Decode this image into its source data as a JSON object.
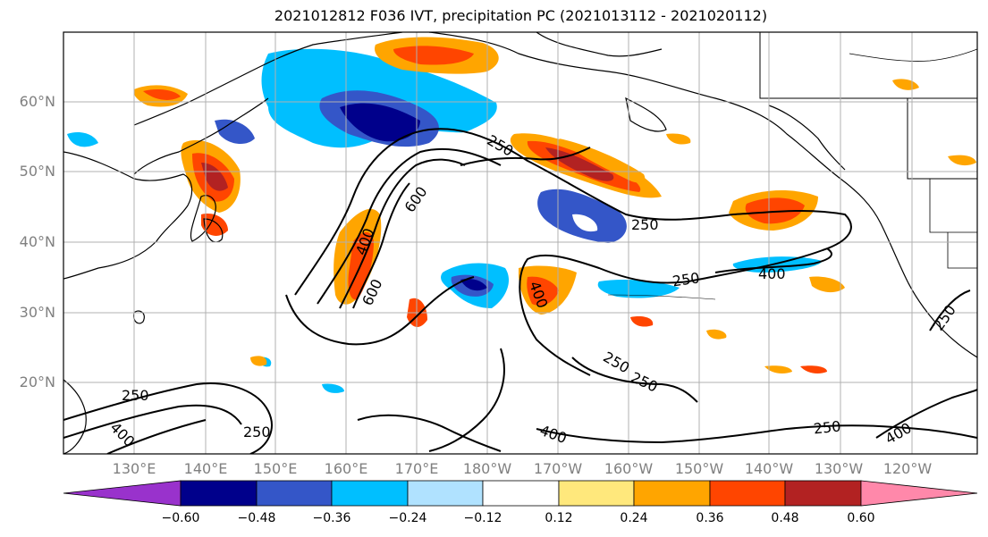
{
  "title": "2021012812 F036 IVT, precipitation PC (2021013112 - 2021020112)",
  "lat_labels": [
    "60°N",
    "50°N",
    "40°N",
    "30°N",
    "20°N"
  ],
  "lon_labels": [
    "130°E",
    "140°E",
    "150°E",
    "160°E",
    "170°E",
    "180°W",
    "170°W",
    "160°W",
    "150°W",
    "140°W",
    "130°W",
    "120°W"
  ],
  "contour_labels": [
    "250",
    "250",
    "250",
    "250",
    "250",
    "250",
    "250",
    "250",
    "400",
    "400",
    "400",
    "400",
    "400",
    "400",
    "600",
    "600",
    "250"
  ],
  "colorbar": {
    "ticks": [
      "−0.60",
      "−0.48",
      "−0.36",
      "−0.24",
      "−0.12",
      "0.12",
      "0.24",
      "0.36",
      "0.48",
      "0.60"
    ],
    "colors": [
      "#9932cc",
      "#00008b",
      "#3456c8",
      "#00bfff",
      "#b0e2ff",
      "#ffffff",
      "#ffe87c",
      "#ffa500",
      "#ff4500",
      "#b22222",
      "#ff88aa"
    ]
  },
  "colors": {
    "land_line": "#000000",
    "grid": "#b0b0b0",
    "tick_label": "#808080"
  }
}
